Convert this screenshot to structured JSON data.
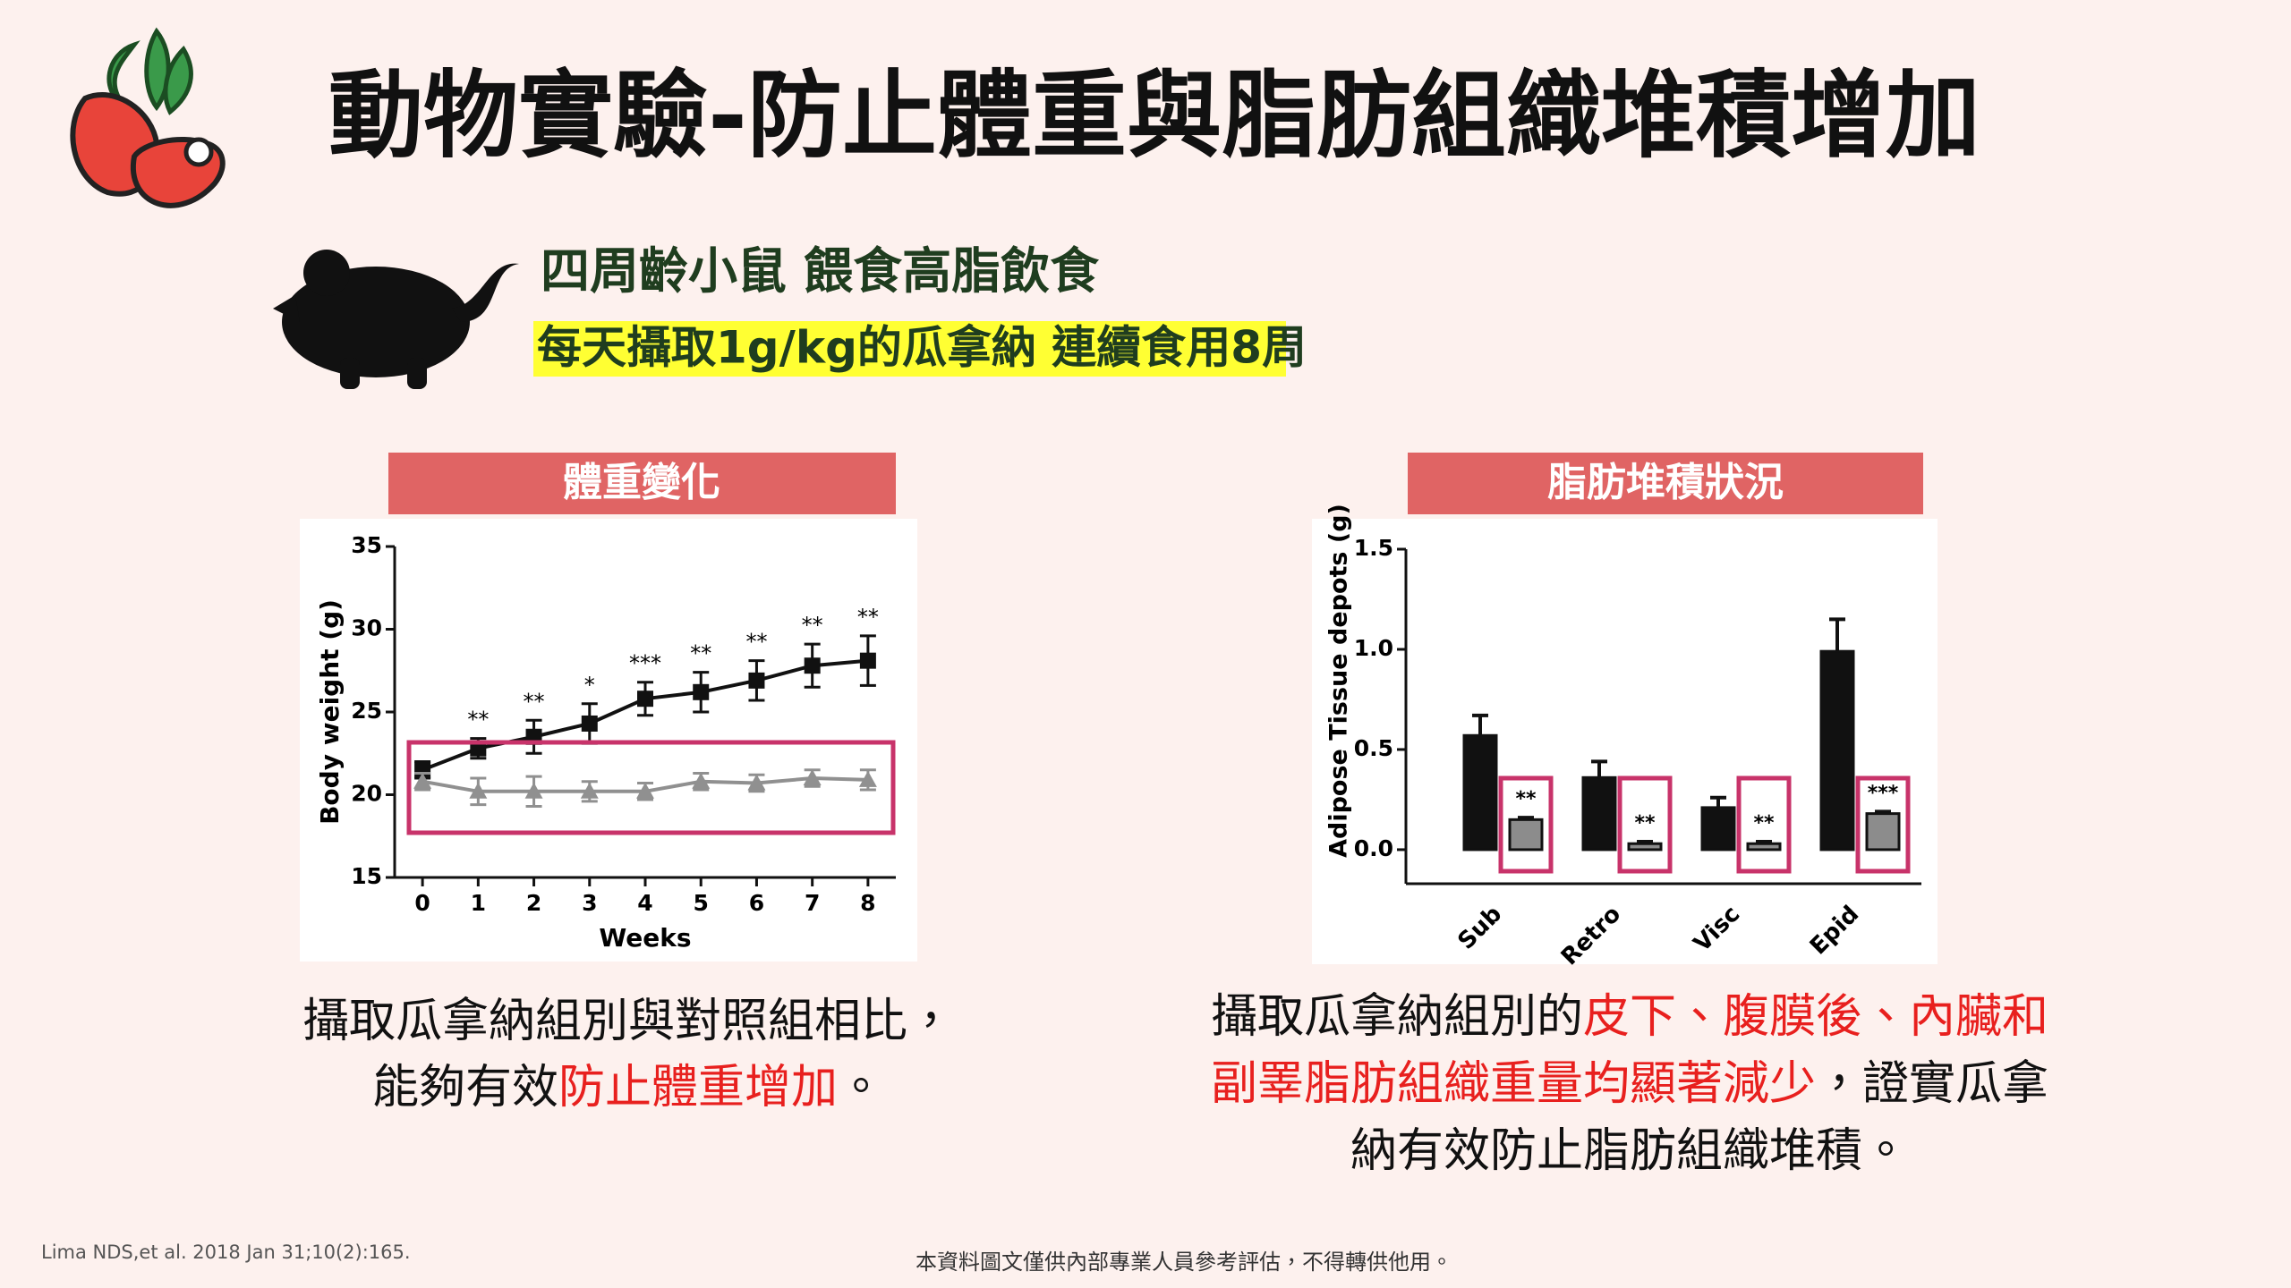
{
  "header": {
    "title": "動物實驗-防止體重與脂肪組織堆積增加"
  },
  "intro": {
    "line1": "四周齡小鼠 餵食高脂飲食",
    "line2": "每天攝取1g/kg的瓜拿納 連續食用8周"
  },
  "panels": [
    {
      "heading": "體重變化",
      "caption": [
        [
          {
            "text": "攝取瓜拿納組別與對照組相比，"
          }
        ],
        [
          {
            "text": "能夠有效"
          },
          {
            "text": "防止體重增加",
            "color": "#e8201e"
          },
          {
            "text": "。"
          }
        ]
      ]
    },
    {
      "heading": "脂肪堆積狀況",
      "caption": [
        [
          {
            "text": "攝取瓜拿納組別的"
          },
          {
            "text": "皮下、腹膜後、內臟和",
            "color": "#e8201e"
          }
        ],
        [
          {
            "text": "副睪脂肪組織重量均顯著減少",
            "color": "#e8201e"
          },
          {
            "text": "，證實瓜拿"
          }
        ],
        [
          {
            "text": "納有效防止脂肪組織堆積。"
          }
        ]
      ]
    }
  ],
  "chart_data": [
    {
      "type": "line",
      "xlabel": "Weeks",
      "ylabel": "Body weight (g)",
      "x": [
        0,
        1,
        2,
        3,
        4,
        5,
        6,
        7,
        8
      ],
      "xlim": [
        -0.5,
        8.5
      ],
      "xticks": [
        0,
        1,
        2,
        3,
        4,
        5,
        6,
        7,
        8
      ],
      "ylim": [
        15,
        35
      ],
      "yticks": [
        15,
        20,
        25,
        30,
        35
      ],
      "series": [
        {
          "color": "#111111",
          "marker": "square",
          "values": [
            21.5,
            22.8,
            23.5,
            24.3,
            25.8,
            26.2,
            26.9,
            27.8,
            28.1
          ],
          "errors": [
            0.5,
            0.6,
            1.0,
            1.2,
            1.0,
            1.2,
            1.2,
            1.3,
            1.5
          ],
          "annotations": [
            null,
            "**",
            "**",
            "*",
            "***",
            "**",
            "**",
            "**",
            "**"
          ]
        },
        {
          "color": "#909090",
          "marker": "triangle",
          "values": [
            20.8,
            20.2,
            20.2,
            20.2,
            20.2,
            20.8,
            20.7,
            21.0,
            20.9
          ],
          "errors": [
            0.5,
            0.8,
            0.9,
            0.6,
            0.5,
            0.5,
            0.5,
            0.5,
            0.6
          ]
        }
      ]
    },
    {
      "type": "bar",
      "ylabel": "Adipose Tissue depots (g)",
      "categories": [
        "Sub",
        "Retro",
        "Visc",
        "Epid"
      ],
      "ylim": [
        -0.17,
        1.5
      ],
      "yticks": [
        {
          "value": 0,
          "label": "0.0"
        },
        0.5,
        {
          "value": 1,
          "label": "1.0"
        },
        1.5
      ],
      "series": [
        {
          "color": "#111111",
          "values": [
            0.57,
            0.36,
            0.21,
            0.99
          ],
          "errors": [
            0.1,
            0.08,
            0.05,
            0.16
          ]
        },
        {
          "color": "#8c8c8c",
          "values": [
            0.15,
            0.03,
            0.03,
            0.18
          ],
          "errors": [
            0.01,
            0.01,
            0.01,
            0.01
          ],
          "annotations": [
            "**",
            "**",
            "**",
            "***"
          ]
        }
      ]
    }
  ],
  "footer": {
    "citation": "Lima NDS,et al. 2018  Jan 31;10(2):165.",
    "notice": "本資料圖文僅供內部專業人員參考評估，不得轉供他用。"
  }
}
